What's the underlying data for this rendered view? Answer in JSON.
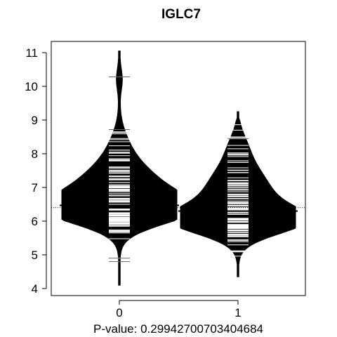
{
  "chart_data": {
    "type": "beanplot",
    "title": "IGLC7",
    "xlabel": "P-value: 0.29942700703404684",
    "ylabel": "",
    "categories": [
      "0",
      "1"
    ],
    "ylim": [
      3.8,
      11.3
    ],
    "yticks": [
      4,
      5,
      6,
      7,
      8,
      9,
      10,
      11
    ],
    "overall_reference_line": 6.4,
    "groups": [
      {
        "name": "0",
        "group_mean": 6.47,
        "range": [
          4.1,
          11.05
        ],
        "mode": 6.3,
        "notable_points": [
          10.28,
          8.72,
          8.1,
          4.9,
          4.8
        ]
      },
      {
        "name": "1",
        "group_mean": 6.3,
        "range": [
          4.35,
          9.25
        ],
        "mode": 6.0,
        "notable_points": [
          8.45,
          7.95
        ]
      }
    ],
    "grid": false,
    "colors": {
      "bean_fill": "#000000",
      "observation_lines": "#ffffff",
      "background": "#ffffff"
    }
  }
}
